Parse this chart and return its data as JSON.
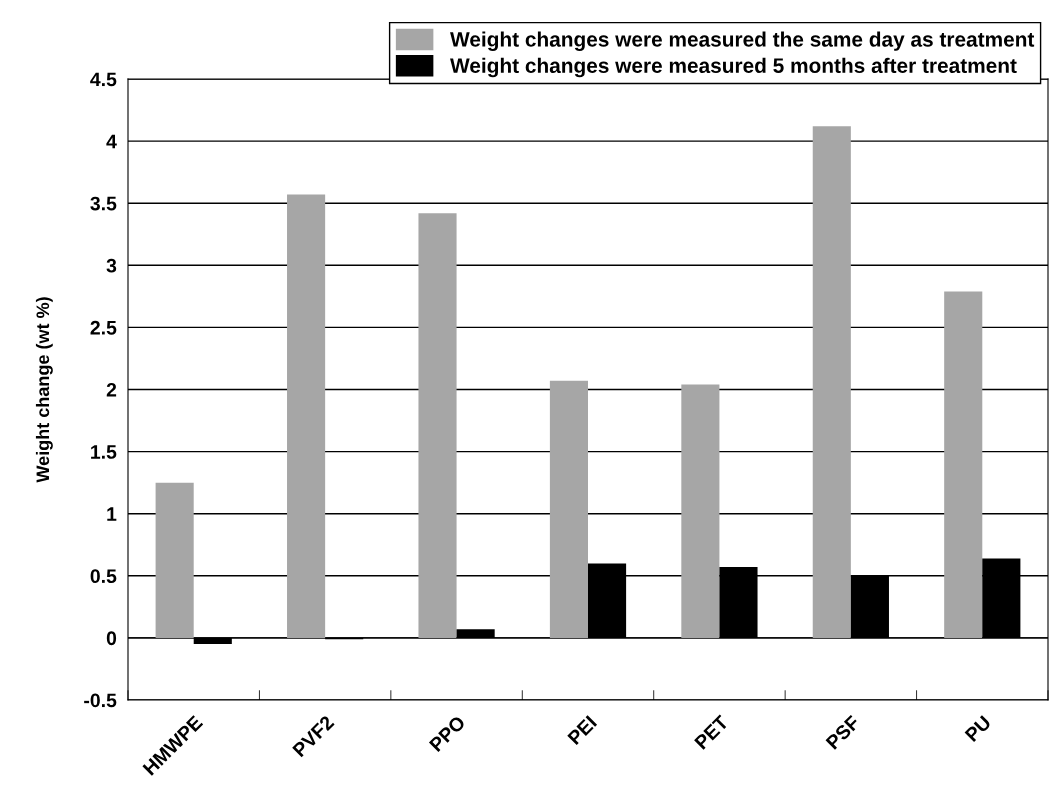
{
  "chart_data": {
    "type": "bar",
    "ylabel": "Weight change (wt %)",
    "categories": [
      "HMWPE",
      "PVF2",
      "PPO",
      "PEI",
      "PET",
      "PSF",
      "PU"
    ],
    "series": [
      {
        "name": "Weight changes were measured the same day as treatment",
        "color": "#a6a6a6",
        "values": [
          1.25,
          3.57,
          3.42,
          2.07,
          2.04,
          4.12,
          2.79
        ]
      },
      {
        "name": "Weight changes were measured 5 months after treatment",
        "color": "#000000",
        "values": [
          -0.05,
          -0.01,
          0.07,
          0.6,
          0.57,
          0.5,
          0.64
        ]
      }
    ],
    "ylim": [
      -0.5,
      4.5
    ],
    "yticks": [
      -0.5,
      0,
      0.5,
      1,
      1.5,
      2,
      2.5,
      3,
      3.5,
      4,
      4.5
    ],
    "grid": "y",
    "legend": "top right"
  }
}
